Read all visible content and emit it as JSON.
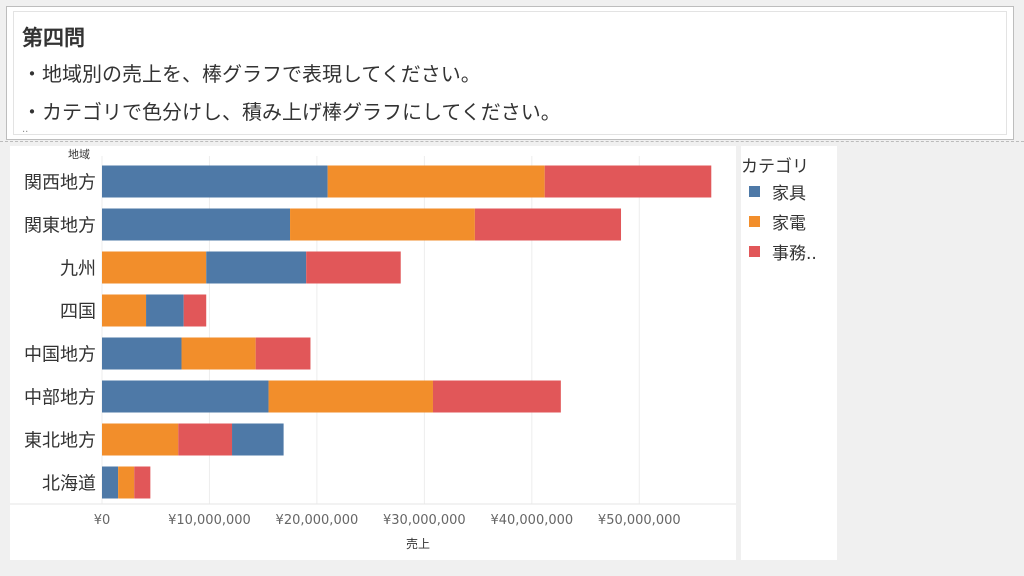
{
  "question": {
    "title": "第四問",
    "line1": "・地域別の売上を、棒グラフで表現してください。",
    "line2": "・カテゴリで色分けし、積み上げ棒グラフにしてください。",
    "dots": ".."
  },
  "legend": {
    "title": "カテゴリ",
    "items": [
      {
        "label": "家具",
        "color": "#4e79a7"
      },
      {
        "label": "家電",
        "color": "#f28e2b"
      },
      {
        "label": "事務..",
        "color": "#e15759"
      }
    ]
  },
  "chart_data": {
    "type": "bar",
    "orientation": "horizontal",
    "stacked": true,
    "ylabel": "地域",
    "xlabel": "売上",
    "categories": [
      "関西地方",
      "関東地方",
      "九州",
      "四国",
      "中国地方",
      "中部地方",
      "東北地方",
      "北海道"
    ],
    "series": [
      {
        "name": "家具",
        "color": "#4e79a7",
        "values": [
          21000000,
          17500000,
          9300000,
          3500000,
          7400000,
          15500000,
          4800000,
          1500000
        ]
      },
      {
        "name": "家電",
        "color": "#f28e2b",
        "values": [
          20200000,
          17200000,
          9700000,
          4100000,
          6900000,
          15300000,
          7100000,
          1500000
        ]
      },
      {
        "name": "事務..",
        "color": "#e15759",
        "values": [
          15500000,
          13600000,
          8800000,
          2100000,
          5100000,
          11900000,
          5000000,
          1500000
        ]
      }
    ],
    "segment_order": [
      [
        0,
        1,
        2
      ],
      [
        0,
        1,
        2
      ],
      [
        1,
        0,
        2
      ],
      [
        1,
        0,
        2
      ],
      [
        0,
        1,
        2
      ],
      [
        0,
        1,
        2
      ],
      [
        1,
        2,
        0
      ],
      [
        0,
        1,
        2
      ]
    ],
    "xlim": [
      0,
      59000000
    ],
    "xticks": [
      0,
      10000000,
      20000000,
      30000000,
      40000000,
      50000000
    ],
    "xtick_labels": [
      "¥0",
      "¥10,000,000",
      "¥20,000,000",
      "¥30,000,000",
      "¥40,000,000",
      "¥50,000,000"
    ],
    "grid": true,
    "legend_position": "right"
  }
}
